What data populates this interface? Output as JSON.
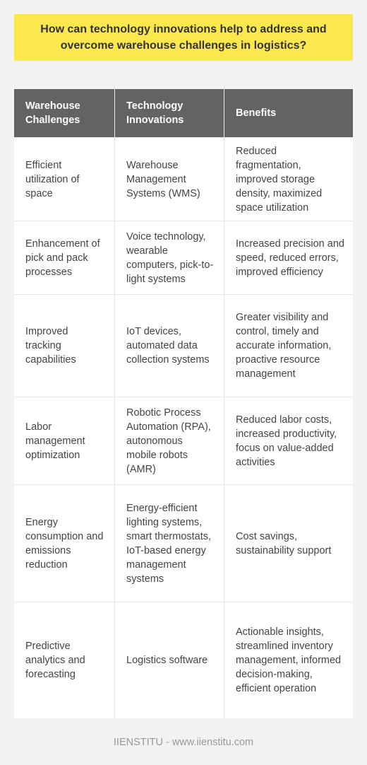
{
  "title": "How can technology innovations help to address and overcome warehouse challenges in logistics?",
  "table": {
    "headers": [
      "Warehouse Challenges",
      "Technology Innovations",
      "Benefits"
    ],
    "rows": [
      [
        "Efficient utilization of space",
        "Warehouse Management Systems (WMS)",
        "Reduced fragmentation, improved storage density, maximized space utilization"
      ],
      [
        "Enhancement of pick and pack processes",
        "Voice technology, wearable computers, pick-to-light systems",
        "Increased precision and speed, reduced errors, improved efficiency"
      ],
      [
        "Improved tracking capabilities",
        "IoT devices, automated data collection systems",
        "Greater visibility and control, timely and accurate information, proactive resource management"
      ],
      [
        "Labor management optimization",
        "Robotic Process Automation (RPA), autonomous mobile robots (AMR)",
        "Reduced labor costs, increased productivity, focus on value-added activities"
      ],
      [
        "Energy consumption and emissions reduction",
        "Energy-efficient lighting systems, smart thermostats, IoT-based energy management systems",
        "Cost savings, sustainability support"
      ],
      [
        "Predictive analytics and forecasting",
        "Logistics software",
        "Actionable insights, streamlined inventory management, informed decision-making, efficient operation"
      ]
    ]
  },
  "footer": "IIENSTITU - www.iienstitu.com",
  "colors": {
    "title_bg": "#fbe84e",
    "header_bg": "#636363",
    "page_bg": "#f2f2f2"
  }
}
